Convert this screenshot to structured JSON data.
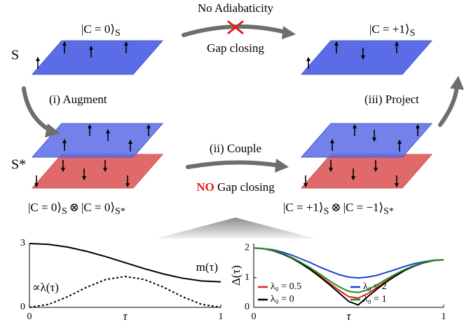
{
  "diagram": {
    "top_left_label": {
      "ket": "|C = 0⟩",
      "sub": "S"
    },
    "top_right_label": {
      "ket": "|C = +1⟩",
      "sub": "S"
    },
    "s_label": "S",
    "s_star_label": "S*",
    "no_adiabaticity": "No Adiabaticity",
    "gap_closing": "Gap closing",
    "augment": "(i) Augment",
    "couple": "(ii) Couple",
    "project": "(iii) Project",
    "no_gap_closing": {
      "no": "NO",
      "rest": "Gap closing"
    },
    "left_product": {
      "ket1": "|C = 0⟩",
      "sub1": "S",
      "otimes": "⊗",
      "ket2": "|C = 0⟩",
      "sub2": "S*"
    },
    "right_product": {
      "ket1": "|C = +1⟩",
      "sub1": "S",
      "otimes": "⊗",
      "ket2": "|C = −1⟩",
      "sub2": "S*"
    }
  },
  "chart_data": [
    {
      "type": "line",
      "xlabel": "τ",
      "x": [
        0,
        0.1,
        0.2,
        0.3,
        0.4,
        0.5,
        0.6,
        0.7,
        0.8,
        0.9,
        1
      ],
      "series": [
        {
          "name": "m(τ)",
          "color": "#000000",
          "style": "solid",
          "values": [
            3.0,
            2.96,
            2.83,
            2.63,
            2.38,
            2.1,
            1.82,
            1.57,
            1.37,
            1.24,
            1.2
          ]
        },
        {
          "name": "∝λ(τ)",
          "color": "#000000",
          "style": "dashed",
          "values": [
            0,
            0.14,
            0.5,
            0.95,
            1.31,
            1.45,
            1.31,
            0.95,
            0.5,
            0.14,
            0
          ]
        }
      ],
      "xlim": [
        0,
        1
      ],
      "ylim": [
        0,
        3
      ],
      "xticks": [
        0,
        1
      ],
      "yticks": [
        0,
        3
      ]
    },
    {
      "type": "line",
      "xlabel": "τ",
      "ylabel": "Δ(τ)",
      "legend": "lower center",
      "x": [
        0,
        0.05,
        0.1,
        0.15,
        0.2,
        0.25,
        0.3,
        0.35,
        0.4,
        0.45,
        0.5,
        0.55,
        0.6,
        0.65,
        0.7,
        0.75,
        0.8,
        0.85,
        0.9,
        0.95,
        1
      ],
      "series": [
        {
          "name": "λ₀ = 0.5",
          "color": "#e3201b",
          "style": "solid",
          "values": [
            2.0,
            1.98,
            1.91,
            1.81,
            1.67,
            1.49,
            1.28,
            1.05,
            0.81,
            0.57,
            0.36,
            0.31,
            0.46,
            0.67,
            0.89,
            1.09,
            1.27,
            1.41,
            1.51,
            1.58,
            1.6
          ]
        },
        {
          "name": "λ₀ = 0",
          "color": "#000000",
          "style": "solid",
          "values": [
            2.0,
            1.98,
            1.91,
            1.8,
            1.66,
            1.47,
            1.26,
            1.02,
            0.76,
            0.48,
            0.2,
            0.08,
            0.36,
            0.62,
            0.86,
            1.07,
            1.26,
            1.4,
            1.51,
            1.58,
            1.6
          ]
        },
        {
          "name": "λ₀ = 2",
          "color": "#1f3fd6",
          "style": "solid",
          "values": [
            2.0,
            1.98,
            1.94,
            1.86,
            1.76,
            1.63,
            1.5,
            1.35,
            1.22,
            1.1,
            1.02,
            0.99,
            1.02,
            1.08,
            1.18,
            1.28,
            1.39,
            1.48,
            1.54,
            1.59,
            1.6
          ]
        },
        {
          "name": "λ₀ = 1",
          "color": "#1e8c1e",
          "style": "solid",
          "values": [
            2.0,
            1.98,
            1.92,
            1.82,
            1.68,
            1.51,
            1.32,
            1.11,
            0.89,
            0.69,
            0.54,
            0.5,
            0.59,
            0.76,
            0.95,
            1.13,
            1.29,
            1.42,
            1.52,
            1.58,
            1.6
          ]
        }
      ],
      "xlim": [
        0,
        1
      ],
      "ylim": [
        0,
        2.15
      ],
      "xticks": [
        0,
        1
      ],
      "yticks": [
        0,
        1,
        2
      ]
    }
  ]
}
